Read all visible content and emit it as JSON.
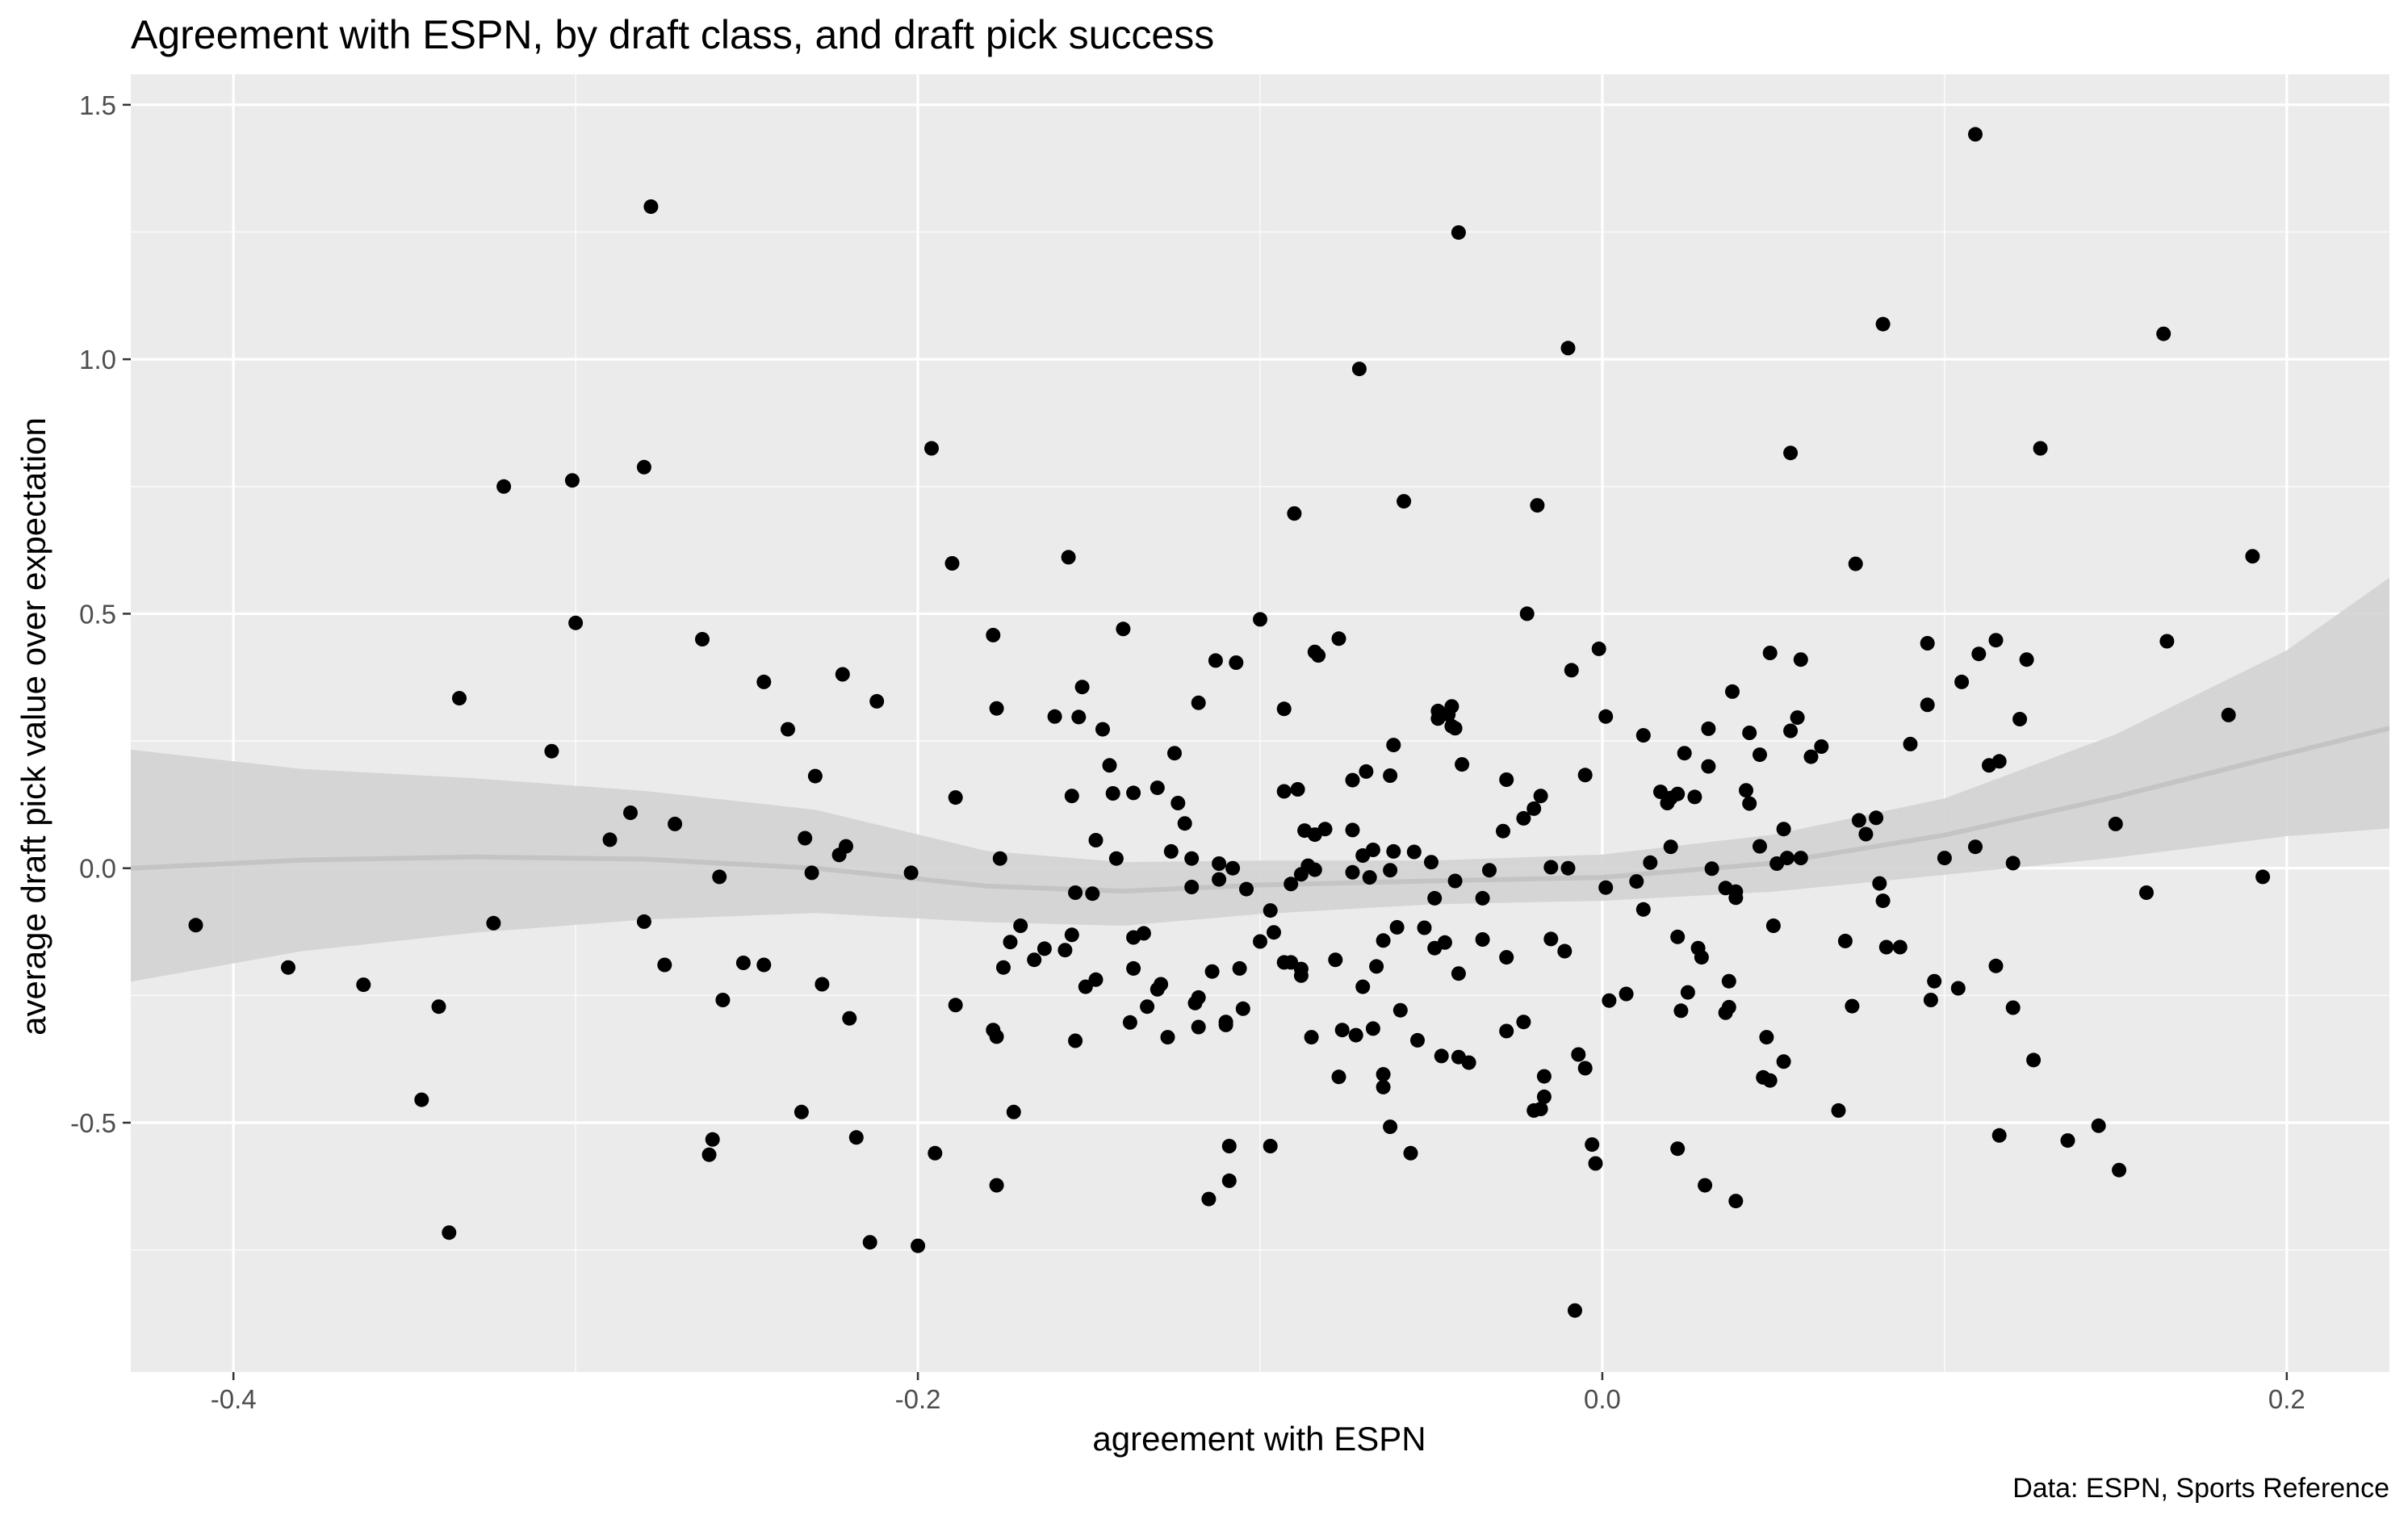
{
  "chart_data": {
    "type": "scatter",
    "title": "Agreement with ESPN, by draft class, and draft pick success",
    "xlabel": "agreement with ESPN",
    "ylabel": "average draft pick value over expectation",
    "caption": "Data: ESPN, Sports Reference",
    "xlim": [
      -0.43,
      0.23
    ],
    "ylim": [
      -0.99,
      1.56
    ],
    "x_ticks": [
      -0.4,
      -0.2,
      0.0,
      0.2
    ],
    "x_tick_labels": [
      "-0.4",
      "-0.2",
      "0.0",
      "0.2"
    ],
    "y_ticks": [
      -0.5,
      0.0,
      0.5,
      1.0,
      1.5
    ],
    "y_tick_labels": [
      "-0.5",
      "0.0",
      "0.5",
      "1.0",
      "1.5"
    ],
    "grid": true,
    "colors": {
      "panel": "#ebebeb",
      "grid": "#ffffff",
      "points": "#000000",
      "smooth_line": "#c4c4c4",
      "confidence_band": "#d3d3d3"
    },
    "points": [
      [
        -0.411,
        -0.112
      ],
      [
        -0.384,
        -0.195
      ],
      [
        -0.362,
        -0.229
      ],
      [
        -0.345,
        -0.455
      ],
      [
        -0.34,
        -0.272
      ],
      [
        -0.337,
        -0.716
      ],
      [
        -0.334,
        0.334
      ],
      [
        -0.324,
        -0.108
      ],
      [
        -0.321,
        0.75
      ],
      [
        -0.307,
        0.23
      ],
      [
        -0.301,
        0.762
      ],
      [
        -0.3,
        0.482
      ],
      [
        -0.29,
        0.056
      ],
      [
        -0.284,
        0.109
      ],
      [
        -0.28,
        -0.105
      ],
      [
        -0.28,
        0.788
      ],
      [
        -0.278,
        1.3
      ],
      [
        -0.274,
        -0.19
      ],
      [
        -0.271,
        0.087
      ],
      [
        -0.263,
        0.45
      ],
      [
        -0.261,
        -0.563
      ],
      [
        -0.26,
        -0.533
      ],
      [
        -0.258,
        -0.017
      ],
      [
        -0.257,
        -0.259
      ],
      [
        -0.251,
        -0.186
      ],
      [
        -0.245,
        -0.19
      ],
      [
        -0.245,
        0.366
      ],
      [
        -0.238,
        0.273
      ],
      [
        -0.234,
        -0.479
      ],
      [
        -0.233,
        0.059
      ],
      [
        -0.231,
        -0.009
      ],
      [
        -0.23,
        0.181
      ],
      [
        -0.228,
        -0.228
      ],
      [
        -0.223,
        0.026
      ],
      [
        -0.222,
        0.381
      ],
      [
        -0.221,
        0.043
      ],
      [
        -0.22,
        -0.295
      ],
      [
        -0.218,
        -0.529
      ],
      [
        -0.214,
        -0.735
      ],
      [
        -0.212,
        0.328
      ],
      [
        -0.202,
        -0.009
      ],
      [
        -0.2,
        -0.742
      ],
      [
        -0.196,
        0.825
      ],
      [
        -0.195,
        -0.56
      ],
      [
        -0.19,
        0.599
      ],
      [
        -0.189,
        0.139
      ],
      [
        -0.189,
        -0.269
      ],
      [
        -0.178,
        0.458
      ],
      [
        -0.178,
        -0.318
      ],
      [
        -0.177,
        -0.331
      ],
      [
        -0.177,
        0.314
      ],
      [
        -0.177,
        -0.623
      ],
      [
        -0.176,
        0.019
      ],
      [
        -0.175,
        -0.195
      ],
      [
        -0.173,
        -0.145
      ],
      [
        -0.172,
        -0.479
      ],
      [
        -0.17,
        -0.113
      ],
      [
        -0.166,
        -0.18
      ],
      [
        -0.163,
        -0.158
      ],
      [
        -0.16,
        0.298
      ],
      [
        -0.157,
        -0.161
      ],
      [
        -0.156,
        0.611
      ],
      [
        -0.155,
        -0.131
      ],
      [
        -0.155,
        0.142
      ],
      [
        -0.154,
        -0.339
      ],
      [
        -0.154,
        -0.048
      ],
      [
        -0.153,
        0.297
      ],
      [
        -0.152,
        0.356
      ],
      [
        -0.151,
        -0.233
      ],
      [
        -0.149,
        -0.05
      ],
      [
        -0.148,
        -0.219
      ],
      [
        -0.148,
        0.055
      ],
      [
        -0.146,
        0.273
      ],
      [
        -0.144,
        0.202
      ],
      [
        -0.143,
        0.147
      ],
      [
        -0.142,
        0.019
      ],
      [
        -0.14,
        0.47
      ],
      [
        -0.138,
        -0.303
      ],
      [
        -0.137,
        -0.197
      ],
      [
        -0.137,
        -0.136
      ],
      [
        -0.137,
        0.148
      ],
      [
        -0.134,
        -0.128
      ],
      [
        -0.133,
        -0.272
      ],
      [
        -0.13,
        -0.238
      ],
      [
        -0.13,
        0.158
      ],
      [
        -0.129,
        -0.228
      ],
      [
        -0.127,
        -0.332
      ],
      [
        -0.126,
        0.033
      ],
      [
        -0.125,
        0.226
      ],
      [
        -0.124,
        0.128
      ],
      [
        -0.122,
        0.088
      ],
      [
        -0.12,
        0.019
      ],
      [
        -0.12,
        -0.037
      ],
      [
        -0.119,
        -0.265
      ],
      [
        -0.118,
        -0.312
      ],
      [
        -0.118,
        -0.254
      ],
      [
        -0.118,
        0.325
      ],
      [
        -0.115,
        -0.65
      ],
      [
        -0.114,
        -0.203
      ],
      [
        -0.113,
        0.408
      ],
      [
        -0.112,
        0.009
      ],
      [
        -0.112,
        -0.022
      ],
      [
        -0.11,
        -0.308
      ],
      [
        -0.11,
        -0.302
      ],
      [
        -0.109,
        -0.546
      ],
      [
        -0.109,
        -0.614
      ],
      [
        -0.108,
        0.0
      ],
      [
        -0.107,
        0.404
      ],
      [
        -0.106,
        -0.197
      ],
      [
        -0.105,
        -0.276
      ],
      [
        -0.104,
        -0.041
      ],
      [
        -0.1,
        -0.144
      ],
      [
        -0.1,
        0.489
      ],
      [
        -0.097,
        -0.546
      ],
      [
        -0.097,
        -0.083
      ],
      [
        -0.096,
        -0.126
      ],
      [
        -0.093,
        -0.185
      ],
      [
        -0.093,
        0.151
      ],
      [
        -0.093,
        0.313
      ],
      [
        -0.091,
        -0.185
      ],
      [
        -0.091,
        -0.031
      ],
      [
        -0.09,
        0.697
      ],
      [
        -0.089,
        0.155
      ],
      [
        -0.088,
        -0.211
      ],
      [
        -0.088,
        -0.198
      ],
      [
        -0.088,
        -0.012
      ],
      [
        -0.087,
        0.074
      ],
      [
        -0.086,
        0.005
      ],
      [
        -0.085,
        -0.332
      ],
      [
        -0.084,
        -0.003
      ],
      [
        -0.084,
        0.425
      ],
      [
        -0.084,
        0.066
      ],
      [
        -0.083,
        0.418
      ],
      [
        -0.081,
        0.077
      ],
      [
        -0.078,
        -0.18
      ],
      [
        -0.077,
        0.451
      ],
      [
        -0.077,
        -0.41
      ],
      [
        -0.076,
        -0.318
      ],
      [
        -0.073,
        0.075
      ],
      [
        -0.073,
        -0.008
      ],
      [
        -0.073,
        0.173
      ],
      [
        -0.072,
        -0.328
      ],
      [
        -0.071,
        0.981
      ],
      [
        -0.07,
        0.025
      ],
      [
        -0.07,
        -0.233
      ],
      [
        -0.069,
        0.19
      ],
      [
        -0.068,
        -0.018
      ],
      [
        -0.067,
        -0.315
      ],
      [
        -0.067,
        0.036
      ],
      [
        -0.066,
        -0.193
      ],
      [
        -0.064,
        -0.43
      ],
      [
        -0.064,
        -0.405
      ],
      [
        -0.064,
        -0.142
      ],
      [
        -0.062,
        0.182
      ],
      [
        -0.062,
        -0.004
      ],
      [
        -0.062,
        -0.508
      ],
      [
        -0.061,
        0.033
      ],
      [
        -0.061,
        0.242
      ],
      [
        -0.06,
        -0.116
      ],
      [
        -0.059,
        -0.279
      ],
      [
        -0.058,
        0.721
      ],
      [
        -0.056,
        -0.56
      ],
      [
        -0.055,
        0.032
      ],
      [
        -0.054,
        -0.338
      ],
      [
        -0.052,
        -0.117
      ],
      [
        -0.05,
        0.012
      ],
      [
        -0.049,
        -0.059
      ],
      [
        -0.049,
        -0.157
      ],
      [
        -0.048,
        0.294
      ],
      [
        -0.048,
        0.309
      ],
      [
        -0.047,
        -0.369
      ],
      [
        -0.046,
        -0.146
      ],
      [
        -0.045,
        0.302
      ],
      [
        -0.044,
        0.279
      ],
      [
        -0.044,
        0.318
      ],
      [
        -0.043,
        0.275
      ],
      [
        -0.043,
        -0.025
      ],
      [
        -0.042,
        1.249
      ],
      [
        -0.042,
        -0.371
      ],
      [
        -0.042,
        -0.207
      ],
      [
        -0.041,
        0.204
      ],
      [
        -0.039,
        -0.382
      ],
      [
        -0.035,
        -0.059
      ],
      [
        -0.035,
        -0.14
      ],
      [
        -0.033,
        -0.004
      ],
      [
        -0.029,
        0.073
      ],
      [
        -0.028,
        -0.175
      ],
      [
        -0.028,
        0.174
      ],
      [
        -0.028,
        -0.32
      ],
      [
        -0.023,
        -0.302
      ],
      [
        -0.023,
        0.098
      ],
      [
        -0.022,
        0.5
      ],
      [
        -0.02,
        0.117
      ],
      [
        -0.02,
        -0.476
      ],
      [
        -0.019,
        0.713
      ],
      [
        -0.018,
        0.142
      ],
      [
        -0.018,
        -0.473
      ],
      [
        -0.017,
        -0.449
      ],
      [
        -0.017,
        -0.409
      ],
      [
        -0.015,
        -0.139
      ],
      [
        -0.015,
        0.002
      ],
      [
        -0.011,
        -0.163
      ],
      [
        -0.01,
        1.022
      ],
      [
        -0.01,
        0.0
      ],
      [
        -0.009,
        0.389
      ],
      [
        -0.008,
        -0.869
      ],
      [
        -0.007,
        -0.366
      ],
      [
        -0.005,
        0.183
      ],
      [
        -0.005,
        -0.393
      ],
      [
        -0.003,
        -0.543
      ],
      [
        -0.002,
        -0.58
      ],
      [
        -0.001,
        0.431
      ],
      [
        0.001,
        -0.038
      ],
      [
        0.001,
        0.298
      ],
      [
        0.002,
        -0.26
      ],
      [
        0.007,
        -0.247
      ],
      [
        0.01,
        -0.026
      ],
      [
        0.012,
        -0.081
      ],
      [
        0.012,
        0.261
      ],
      [
        0.014,
        0.011
      ],
      [
        0.017,
        0.15
      ],
      [
        0.019,
        0.128
      ],
      [
        0.02,
        0.138
      ],
      [
        0.02,
        0.042
      ],
      [
        0.022,
        -0.135
      ],
      [
        0.022,
        -0.551
      ],
      [
        0.022,
        0.146
      ],
      [
        0.023,
        -0.28
      ],
      [
        0.024,
        0.226
      ],
      [
        0.025,
        -0.244
      ],
      [
        0.027,
        0.14
      ],
      [
        0.028,
        -0.157
      ],
      [
        0.029,
        -0.175
      ],
      [
        0.03,
        -0.623
      ],
      [
        0.031,
        0.2
      ],
      [
        0.031,
        0.274
      ],
      [
        0.032,
        -0.001
      ],
      [
        0.036,
        -0.284
      ],
      [
        0.036,
        -0.039
      ],
      [
        0.037,
        -0.273
      ],
      [
        0.037,
        -0.222
      ],
      [
        0.038,
        0.347
      ],
      [
        0.039,
        -0.046
      ],
      [
        0.039,
        -0.654
      ],
      [
        0.039,
        -0.058
      ],
      [
        0.042,
        0.153
      ],
      [
        0.043,
        0.127
      ],
      [
        0.043,
        0.266
      ],
      [
        0.046,
        0.043
      ],
      [
        0.046,
        0.223
      ],
      [
        0.047,
        -0.411
      ],
      [
        0.048,
        -0.332
      ],
      [
        0.049,
        0.423
      ],
      [
        0.049,
        -0.417
      ],
      [
        0.05,
        -0.113
      ],
      [
        0.051,
        0.009
      ],
      [
        0.053,
        0.077
      ],
      [
        0.053,
        -0.38
      ],
      [
        0.054,
        0.02
      ],
      [
        0.055,
        0.27
      ],
      [
        0.055,
        0.816
      ],
      [
        0.057,
        0.296
      ],
      [
        0.058,
        0.02
      ],
      [
        0.058,
        0.41
      ],
      [
        0.061,
        0.219
      ],
      [
        0.064,
        0.239
      ],
      [
        0.069,
        -0.476
      ],
      [
        0.071,
        -0.143
      ],
      [
        0.073,
        -0.271
      ],
      [
        0.074,
        0.598
      ],
      [
        0.075,
        0.094
      ],
      [
        0.077,
        0.067
      ],
      [
        0.08,
        0.099
      ],
      [
        0.081,
        -0.03
      ],
      [
        0.082,
        1.069
      ],
      [
        0.082,
        -0.064
      ],
      [
        0.083,
        -0.155
      ],
      [
        0.087,
        -0.155
      ],
      [
        0.09,
        0.244
      ],
      [
        0.095,
        0.442
      ],
      [
        0.095,
        0.321
      ],
      [
        0.096,
        -0.259
      ],
      [
        0.097,
        -0.222
      ],
      [
        0.1,
        0.02
      ],
      [
        0.104,
        -0.236
      ],
      [
        0.105,
        0.366
      ],
      [
        0.109,
        1.442
      ],
      [
        0.109,
        0.042
      ],
      [
        0.11,
        0.421
      ],
      [
        0.113,
        0.202
      ],
      [
        0.115,
        0.448
      ],
      [
        0.115,
        -0.192
      ],
      [
        0.116,
        0.21
      ],
      [
        0.116,
        -0.525
      ],
      [
        0.12,
        0.01
      ],
      [
        0.12,
        -0.274
      ],
      [
        0.122,
        0.293
      ],
      [
        0.124,
        0.41
      ],
      [
        0.126,
        -0.377
      ],
      [
        0.128,
        0.825
      ],
      [
        0.136,
        -0.535
      ],
      [
        0.145,
        -0.506
      ],
      [
        0.15,
        0.087
      ],
      [
        0.151,
        -0.593
      ],
      [
        0.159,
        -0.048
      ],
      [
        0.164,
        1.05
      ],
      [
        0.165,
        0.446
      ],
      [
        0.183,
        0.301
      ],
      [
        0.19,
        0.613
      ],
      [
        0.193,
        -0.017
      ]
    ],
    "smooth": {
      "x": [
        -0.43,
        -0.38,
        -0.33,
        -0.28,
        -0.23,
        -0.18,
        -0.14,
        -0.1,
        -0.05,
        0.0,
        0.05,
        0.1,
        0.15,
        0.2,
        0.23
      ],
      "y": [
        0.0,
        0.016,
        0.022,
        0.018,
        0.0,
        -0.035,
        -0.045,
        -0.033,
        -0.025,
        -0.018,
        0.01,
        0.065,
        0.14,
        0.225,
        0.275
      ],
      "ymin": [
        -0.223,
        -0.163,
        -0.127,
        -0.101,
        -0.088,
        -0.106,
        -0.113,
        -0.09,
        -0.071,
        -0.064,
        -0.046,
        -0.013,
        0.021,
        0.063,
        0.078
      ],
      "ymax": [
        0.233,
        0.195,
        0.177,
        0.152,
        0.115,
        0.034,
        0.012,
        0.015,
        0.015,
        0.027,
        0.066,
        0.137,
        0.263,
        0.428,
        0.571
      ]
    }
  }
}
